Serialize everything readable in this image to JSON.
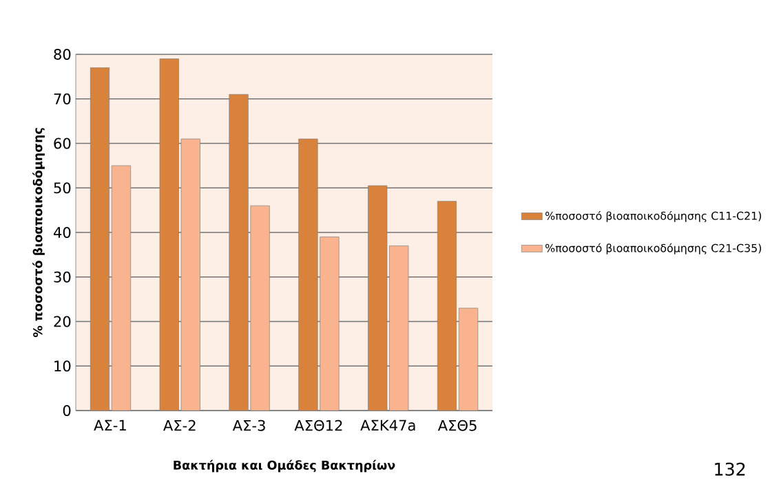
{
  "chart_data": {
    "type": "bar",
    "xlabel": "Βακτήρια και Ομάδες Βακτηρίων",
    "ylabel": "% ποσοστό βιοαποικοδόμησης",
    "categories": [
      "ΑΣ-1",
      "ΑΣ-2",
      "ΑΣ-3",
      "ΑΣΘ12",
      "ΑΣΚ47a",
      "ΑΣΘ5"
    ],
    "series": [
      {
        "name": "%ποσοστό βιοαποικοδόμησης C11-C21)",
        "color": "#d9823b",
        "values": [
          77,
          79,
          71,
          61,
          50.5,
          47
        ]
      },
      {
        "name": "%ποσοστό βιοαποικοδόμησης C21-C35)",
        "color": "#f9b48f",
        "values": [
          55,
          61,
          46,
          39,
          37,
          23
        ]
      }
    ],
    "ylim": [
      0,
      80
    ],
    "yticks": [
      0,
      10,
      20,
      30,
      40,
      50,
      60,
      70,
      80
    ],
    "grid": "y",
    "legend": "right",
    "annotations": [
      "132"
    ]
  }
}
